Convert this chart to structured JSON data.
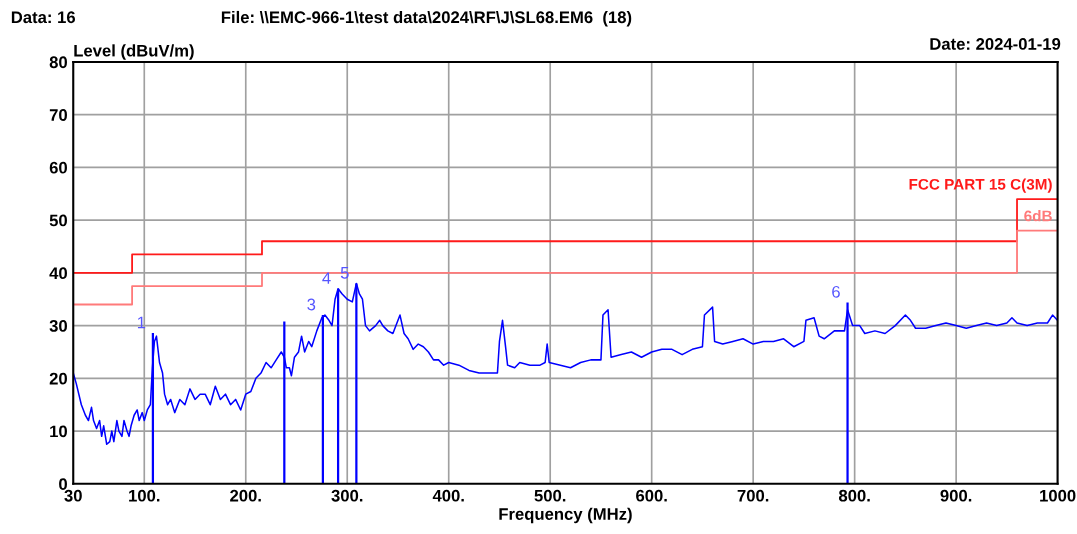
{
  "chart_data": {
    "type": "line",
    "title": "File: \\\\EMC-966-1\\test data\\2024\\RF\\J\\SL68.EM6  (18)",
    "annotations": [
      "Data: 16",
      "Date: 2024-01-19",
      {
        "text": "1",
        "x": 108.5,
        "y": 28.6
      },
      {
        "text": "3",
        "x": 276,
        "y": 32
      },
      {
        "text": "4",
        "x": 291,
        "y": 37
      },
      {
        "text": "5",
        "x": 309,
        "y": 38
      },
      {
        "text": "6",
        "x": 793,
        "y": 34.4
      }
    ],
    "xlabel": "Frequency (MHz)",
    "ylabel": "Level (dBuV/m)",
    "xlim": [
      30,
      1000
    ],
    "ylim": [
      0,
      80
    ],
    "xticks": [
      {
        "value": 30,
        "label": "30"
      },
      {
        "value": 100,
        "label": "100."
      },
      {
        "value": 200,
        "label": "200."
      },
      {
        "value": 300,
        "label": "300."
      },
      {
        "value": 400,
        "label": "400."
      },
      {
        "value": 500,
        "label": "500."
      },
      {
        "value": 600,
        "label": "600."
      },
      {
        "value": 700,
        "label": "700."
      },
      {
        "value": 800,
        "label": "800."
      },
      {
        "value": 900,
        "label": "900."
      },
      {
        "value": 1000,
        "label": "1000"
      }
    ],
    "yticks": [
      0,
      10,
      20,
      30,
      40,
      50,
      60,
      70,
      80
    ],
    "grid": true,
    "series": [
      {
        "color": "#0000ff",
        "x": [
          30,
          33,
          38,
          42,
          45,
          48,
          50,
          53,
          56,
          58,
          60,
          63,
          66,
          68,
          70,
          73,
          75,
          78,
          80,
          83,
          85,
          87,
          90,
          93,
          95,
          98,
          100,
          103,
          106,
          108,
          110,
          112,
          115,
          118,
          120,
          123,
          126,
          130,
          135,
          140,
          145,
          150,
          155,
          160,
          165,
          170,
          175,
          180,
          185,
          190,
          195,
          200,
          205,
          210,
          215,
          220,
          225,
          230,
          235,
          238,
          240,
          243,
          245,
          248,
          252,
          255,
          258,
          262,
          265,
          270,
          275,
          278,
          282,
          285,
          288,
          291,
          295,
          300,
          305,
          309,
          312,
          315,
          318,
          322,
          328,
          332,
          335,
          340,
          345,
          350,
          352,
          356,
          360,
          365,
          370,
          375,
          380,
          385,
          390,
          395,
          400,
          410,
          420,
          430,
          440,
          448,
          450,
          453,
          456,
          458,
          465,
          470,
          480,
          490,
          495,
          497,
          499,
          510,
          520,
          530,
          540,
          550,
          552,
          557,
          560,
          570,
          580,
          590,
          600,
          610,
          620,
          630,
          640,
          650,
          652,
          660,
          662,
          670,
          680,
          690,
          700,
          710,
          720,
          730,
          740,
          750,
          752,
          760,
          765,
          770,
          780,
          790,
          793,
          798,
          805,
          810,
          820,
          830,
          840,
          850,
          855,
          860,
          870,
          880,
          890,
          900,
          910,
          920,
          930,
          940,
          950,
          955,
          960,
          970,
          980,
          990,
          995,
          1000
        ],
        "values": [
          21,
          19,
          15,
          13,
          12,
          14.5,
          12,
          10.5,
          12,
          9,
          11,
          7.5,
          8,
          10,
          8,
          12,
          10,
          9,
          12,
          10,
          9,
          11,
          13,
          14,
          12,
          13.5,
          12,
          14,
          15,
          22,
          27,
          28,
          23,
          21,
          17,
          15,
          16,
          13.5,
          16,
          15,
          18,
          16,
          17,
          17,
          15,
          18.5,
          16,
          17,
          15,
          16,
          14,
          17,
          17.5,
          20,
          21,
          23,
          22,
          23.5,
          25,
          24,
          22,
          22,
          20.5,
          24,
          25,
          28,
          25,
          27,
          26,
          29,
          31.5,
          32,
          31,
          30,
          35,
          37,
          36,
          35,
          34.5,
          38,
          36,
          35,
          30,
          29,
          30,
          31,
          30,
          29,
          28.5,
          31,
          32,
          28.5,
          27.5,
          25.5,
          26.5,
          26,
          25,
          23.5,
          23.5,
          22.5,
          23,
          22.5,
          21.5,
          21,
          21,
          21,
          27,
          31,
          26,
          22.5,
          22,
          23,
          22.5,
          22.5,
          23,
          26.5,
          23,
          22.5,
          22,
          23,
          23.5,
          23.5,
          32,
          33,
          24,
          24.5,
          25,
          24,
          25,
          25.5,
          25.5,
          24.5,
          25.5,
          26,
          32,
          33.5,
          27,
          26.5,
          27,
          27.5,
          26.5,
          27,
          27,
          27.5,
          26,
          27,
          31,
          31.5,
          28,
          27.5,
          29,
          29,
          33,
          30,
          30,
          28.5,
          29,
          28.5,
          30,
          32,
          31,
          29.5,
          29.5,
          30,
          30.5,
          30,
          29.5,
          30,
          30.5,
          30,
          30.5,
          31.5,
          30.5,
          30,
          30.5,
          30.5,
          32,
          31
        ]
      },
      {
        "type": "step",
        "name": "FCC PART 15 C(3M)",
        "color": "#ff1a1a",
        "x": [
          30,
          88,
          216,
          960,
          1000
        ],
        "values": [
          40,
          43.5,
          46,
          54,
          54
        ]
      },
      {
        "type": "step",
        "name": "6dB",
        "color": "#ff7a7a",
        "x": [
          30,
          88,
          216,
          960,
          1000
        ],
        "values": [
          34,
          37.5,
          40,
          48,
          48
        ]
      },
      {
        "type": "bar",
        "color": "#0000ff",
        "x": [
          108.5,
          238,
          276,
          291,
          309,
          793
        ],
        "values": [
          28.6,
          30.8,
          32,
          37,
          38,
          34.4
        ]
      }
    ]
  }
}
